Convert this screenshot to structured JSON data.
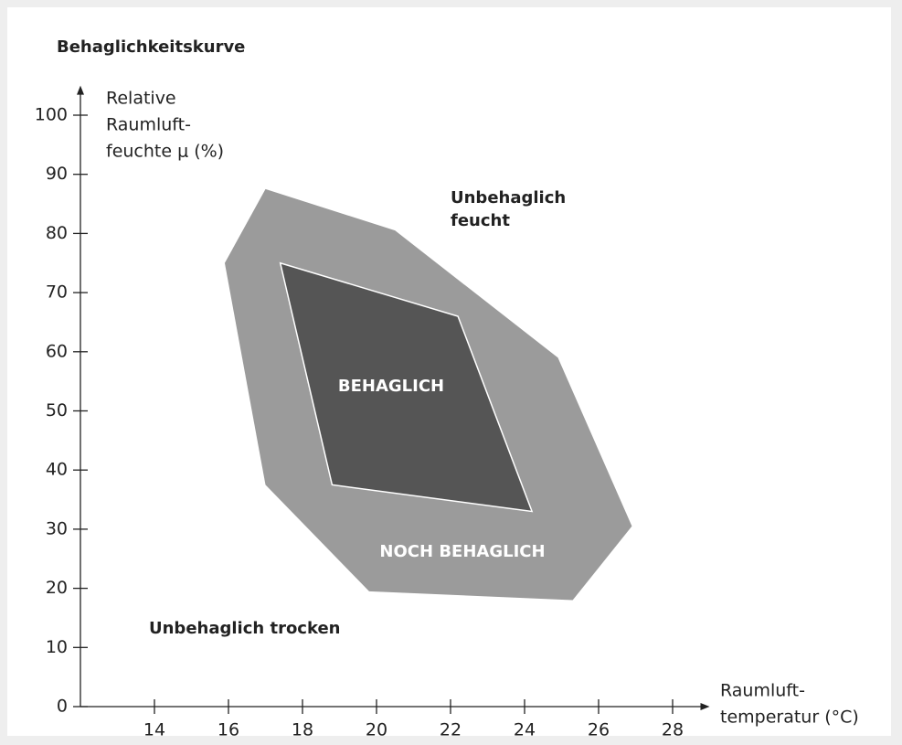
{
  "chart_data": {
    "type": "polygon",
    "title": "Behaglichkeitskurve",
    "x_label": [
      "Raumluft-",
      "temperatur (°C)"
    ],
    "y_label": [
      "Relative",
      "Raumluft-",
      "feuchte μ (%)"
    ],
    "series": [
      {
        "name": "NOCH BEHAGLICH",
        "color": "#9b9b9b",
        "x": [
          17.0,
          20.5,
          24.9,
          26.9,
          25.3,
          19.8,
          17.0,
          15.9
        ],
        "values": [
          87.5,
          80.5,
          59,
          30.5,
          18,
          19.5,
          37.5,
          75
        ]
      },
      {
        "name": "BEHAGLICH",
        "color": "#555555",
        "x": [
          17.4,
          22.2,
          24.2,
          18.8
        ],
        "values": [
          75,
          66,
          33,
          37.5
        ]
      }
    ],
    "annotations": [
      [
        "Unbehaglich",
        "feucht"
      ],
      [
        "Unbehaglich trocken"
      ]
    ],
    "xlim": [
      12,
      29
    ],
    "ylim": [
      0,
      105
    ],
    "xticks": [
      14,
      16,
      18,
      20,
      22,
      24,
      26,
      28
    ],
    "yticks": [
      0,
      10,
      20,
      30,
      40,
      50,
      60,
      70,
      80,
      90,
      100
    ]
  }
}
